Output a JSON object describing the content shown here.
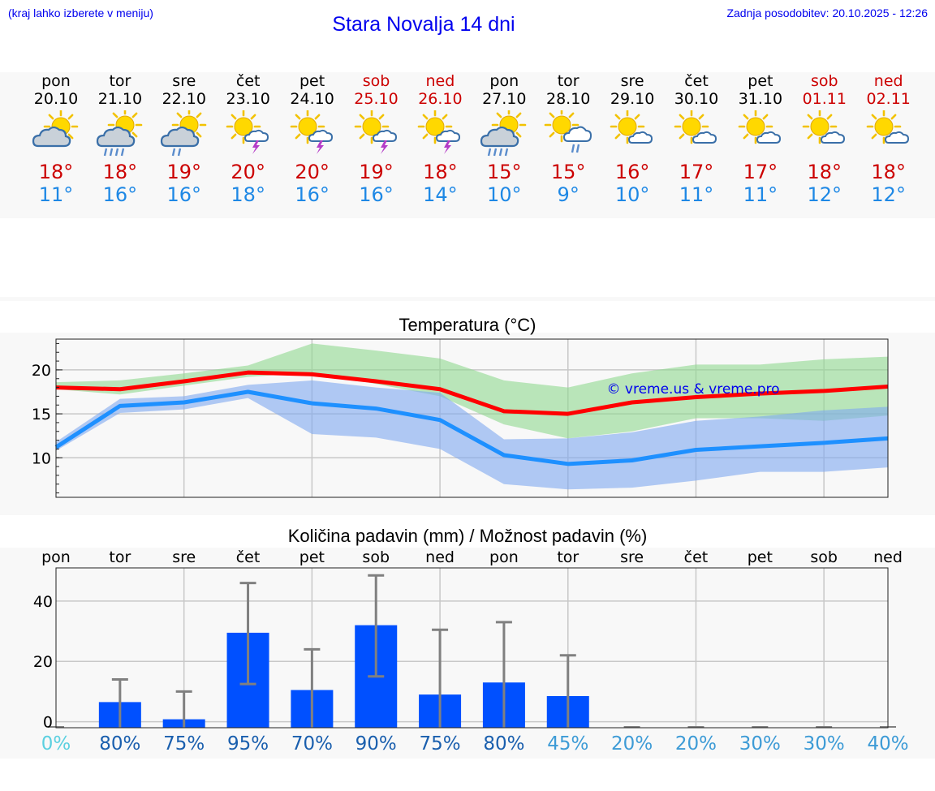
{
  "header": {
    "hint": "(kraj lahko izberete v meniju)",
    "title": "Stara Novalja 14 dni",
    "updated": "Zadnja posodobitev: 20.10.2025 - 12:26"
  },
  "days": [
    {
      "name": "pon",
      "date": "20.10",
      "weekend": false,
      "icon": "sun-cloud-icon",
      "tmax": "18°",
      "tmin": "11°"
    },
    {
      "name": "tor",
      "date": "21.10",
      "weekend": false,
      "icon": "sun-rain-cloud-icon",
      "tmax": "18°",
      "tmin": "16°"
    },
    {
      "name": "sre",
      "date": "22.10",
      "weekend": false,
      "icon": "sun-light-rain-cloud-icon",
      "tmax": "19°",
      "tmin": "16°"
    },
    {
      "name": "čet",
      "date": "23.10",
      "weekend": false,
      "icon": "sun-thunderstorm-icon",
      "tmax": "20°",
      "tmin": "18°"
    },
    {
      "name": "pet",
      "date": "24.10",
      "weekend": false,
      "icon": "sun-thunderstorm-icon",
      "tmax": "20°",
      "tmin": "16°"
    },
    {
      "name": "sob",
      "date": "25.10",
      "weekend": true,
      "icon": "sun-thunderstorm-icon",
      "tmax": "19°",
      "tmin": "16°"
    },
    {
      "name": "ned",
      "date": "26.10",
      "weekend": true,
      "icon": "sun-thunderstorm-icon",
      "tmax": "18°",
      "tmin": "14°"
    },
    {
      "name": "pon",
      "date": "27.10",
      "weekend": false,
      "icon": "sun-rain-cloud-icon",
      "tmax": "15°",
      "tmin": "10°"
    },
    {
      "name": "tor",
      "date": "28.10",
      "weekend": false,
      "icon": "sun-cloud-showers-icon",
      "tmax": "15°",
      "tmin": "9°"
    },
    {
      "name": "sre",
      "date": "29.10",
      "weekend": false,
      "icon": "sun-small-cloud-icon",
      "tmax": "16°",
      "tmin": "10°"
    },
    {
      "name": "čet",
      "date": "30.10",
      "weekend": false,
      "icon": "sun-small-cloud-icon",
      "tmax": "17°",
      "tmin": "11°"
    },
    {
      "name": "pet",
      "date": "31.10",
      "weekend": false,
      "icon": "sun-small-cloud-icon",
      "tmax": "17°",
      "tmin": "11°"
    },
    {
      "name": "sob",
      "date": "01.11",
      "weekend": true,
      "icon": "sun-small-cloud-icon",
      "tmax": "18°",
      "tmin": "12°"
    },
    {
      "name": "ned",
      "date": "02.11",
      "weekend": true,
      "icon": "sun-small-cloud-icon",
      "tmax": "18°",
      "tmin": "12°"
    }
  ],
  "chart_data": [
    {
      "type": "line",
      "title": "Temperatura (°C)",
      "watermark": "© vreme.us & vreme.pro",
      "ylim": [
        5.5,
        23.5
      ],
      "yticks": [
        10,
        15,
        20
      ],
      "grid": true,
      "x": [
        0,
        1,
        2,
        3,
        4,
        5,
        6,
        7,
        8,
        9,
        10,
        11,
        12,
        13
      ],
      "series": [
        {
          "role": "max",
          "color": "#ff0000",
          "values": [
            18.0,
            17.8,
            18.7,
            19.7,
            19.5,
            18.7,
            17.8,
            15.3,
            15.0,
            16.3,
            16.9,
            17.3,
            17.6,
            18.1
          ]
        },
        {
          "role": "min",
          "color": "#1e90ff",
          "values": [
            11.2,
            15.9,
            16.3,
            17.5,
            16.2,
            15.6,
            14.3,
            10.3,
            9.3,
            9.7,
            10.9,
            11.3,
            11.7,
            12.2
          ]
        }
      ],
      "bands": [
        {
          "role": "max-range",
          "color": "#8fd98f",
          "low": [
            17.8,
            17.2,
            18.2,
            19.2,
            19.7,
            18.4,
            17.0,
            13.8,
            12.2,
            13.0,
            14.5,
            14.5,
            14.2,
            14.8
          ],
          "high": [
            18.6,
            18.8,
            19.6,
            20.5,
            23.0,
            22.2,
            21.3,
            18.8,
            18.0,
            19.6,
            20.6,
            20.6,
            21.2,
            21.5
          ]
        },
        {
          "role": "min-range",
          "color": "#7fa8f0",
          "low": [
            10.8,
            15.1,
            15.5,
            16.8,
            12.7,
            12.3,
            11.0,
            7.0,
            6.4,
            6.6,
            7.4,
            8.4,
            8.4,
            8.9
          ],
          "high": [
            11.8,
            16.7,
            17.0,
            18.3,
            18.8,
            18.0,
            17.4,
            12.1,
            12.2,
            12.9,
            14.2,
            14.7,
            15.4,
            15.8
          ]
        }
      ]
    },
    {
      "type": "bar",
      "title": "Količina padavin (mm) / Možnost padavin (%)",
      "categories": [
        "pon",
        "tor",
        "sre",
        "čet",
        "pet",
        "sob",
        "ned",
        "pon",
        "tor",
        "sre",
        "čet",
        "pet",
        "sob",
        "ned"
      ],
      "values": [
        0,
        6.5,
        0.8,
        29.5,
        10.5,
        32,
        9,
        13,
        8.5,
        0,
        0,
        0,
        0,
        0
      ],
      "error_high": [
        0,
        14,
        10,
        46,
        24,
        48.5,
        30.5,
        33,
        22,
        0,
        0,
        0,
        0,
        0
      ],
      "error_low": [
        0,
        0,
        0,
        12.5,
        0,
        15,
        0,
        0,
        0,
        0,
        0,
        0,
        0,
        0
      ],
      "ylim": [
        -2,
        51
      ],
      "yticks": [
        0,
        20,
        40
      ],
      "bar_color": "#0050ff",
      "error_color": "#808080",
      "probability": [
        "0%",
        "80%",
        "75%",
        "95%",
        "70%",
        "90%",
        "75%",
        "80%",
        "45%",
        "20%",
        "20%",
        "30%",
        "30%",
        "40%"
      ],
      "probability_colors": [
        "#5bd0e0",
        "#1a5fae",
        "#1a5fae",
        "#1a5fae",
        "#1a5fae",
        "#1a5fae",
        "#1a5fae",
        "#1a5fae",
        "#3d9bd6",
        "#3d9bd6",
        "#3d9bd6",
        "#3d9bd6",
        "#3d9bd6",
        "#3d9bd6"
      ]
    }
  ]
}
